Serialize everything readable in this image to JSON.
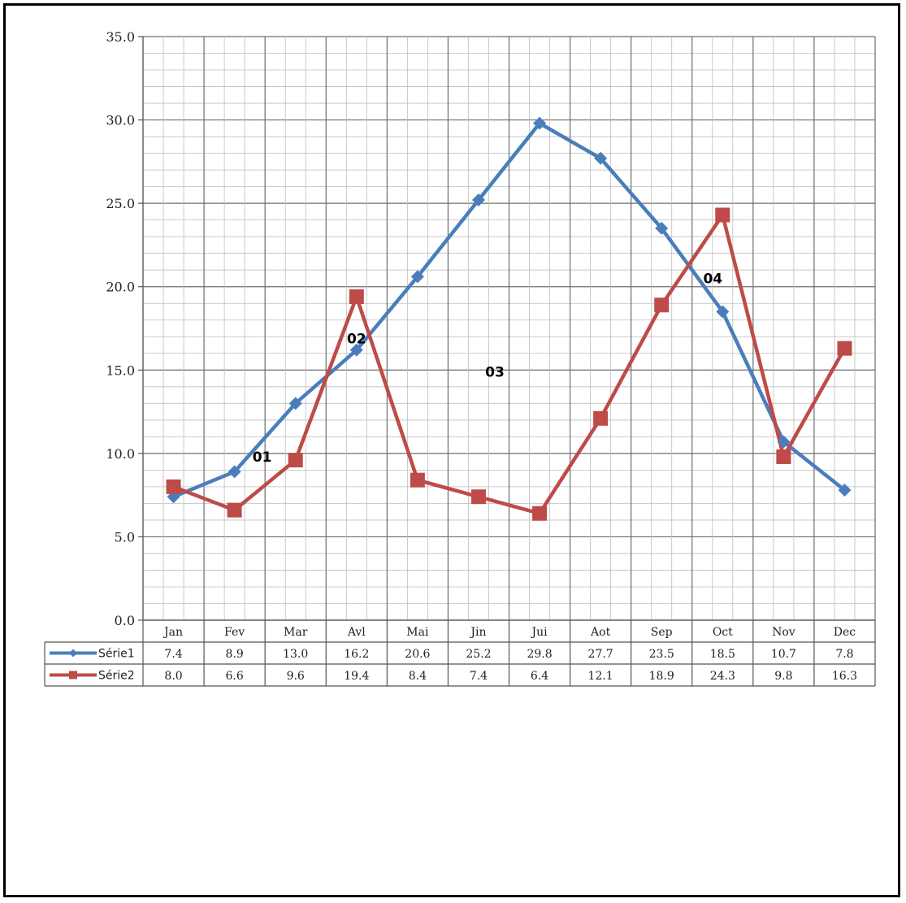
{
  "chart_data": {
    "type": "line",
    "categories": [
      "Jan",
      "Fev",
      "Mar",
      "Avl",
      "Mai",
      "Jin",
      "Jui",
      "Aot",
      "Sep",
      "Oct",
      "Nov",
      "Dec"
    ],
    "ylim": [
      0,
      35
    ],
    "yticks": [
      0,
      5,
      10,
      15,
      20,
      25,
      30,
      35
    ],
    "ytick_labels": [
      "0.0",
      "5.0",
      "10.0",
      "15.0",
      "20.0",
      "25.0",
      "30.0",
      "35.0"
    ],
    "grid": true,
    "legend": "data-table",
    "series": [
      {
        "name": "Série1",
        "color": "#4a7ebb",
        "marker": "diamond",
        "values": [
          7.4,
          8.9,
          13.0,
          16.2,
          20.6,
          25.2,
          29.8,
          27.7,
          23.5,
          18.5,
          10.7,
          7.8
        ],
        "labels": [
          "7.4",
          "8.9",
          "13.0",
          "16.2",
          "20.6",
          "25.2",
          "29.8",
          "27.7",
          "23.5",
          "18.5",
          "10.7",
          "7.8"
        ]
      },
      {
        "name": "Série2",
        "color": "#be4b48",
        "marker": "square",
        "values": [
          8.0,
          6.6,
          9.6,
          19.4,
          8.4,
          7.4,
          6.4,
          12.1,
          18.9,
          24.3,
          9.8,
          16.3
        ],
        "labels": [
          "8.0",
          "6.6",
          "9.6",
          "19.4",
          "8.4",
          "7.4",
          "6.4",
          "12.1",
          "18.9",
          "24.3",
          "9.8",
          "16.3"
        ]
      }
    ],
    "annotations": [
      {
        "text": "01",
        "x": "Fev",
        "y": 9.8
      },
      {
        "text": "02",
        "x": "Avl",
        "y": 16.9
      },
      {
        "text": "03",
        "x": "Jin",
        "y": 14.9
      },
      {
        "text": "04",
        "x": "Oct",
        "y": 20.5
      }
    ]
  }
}
